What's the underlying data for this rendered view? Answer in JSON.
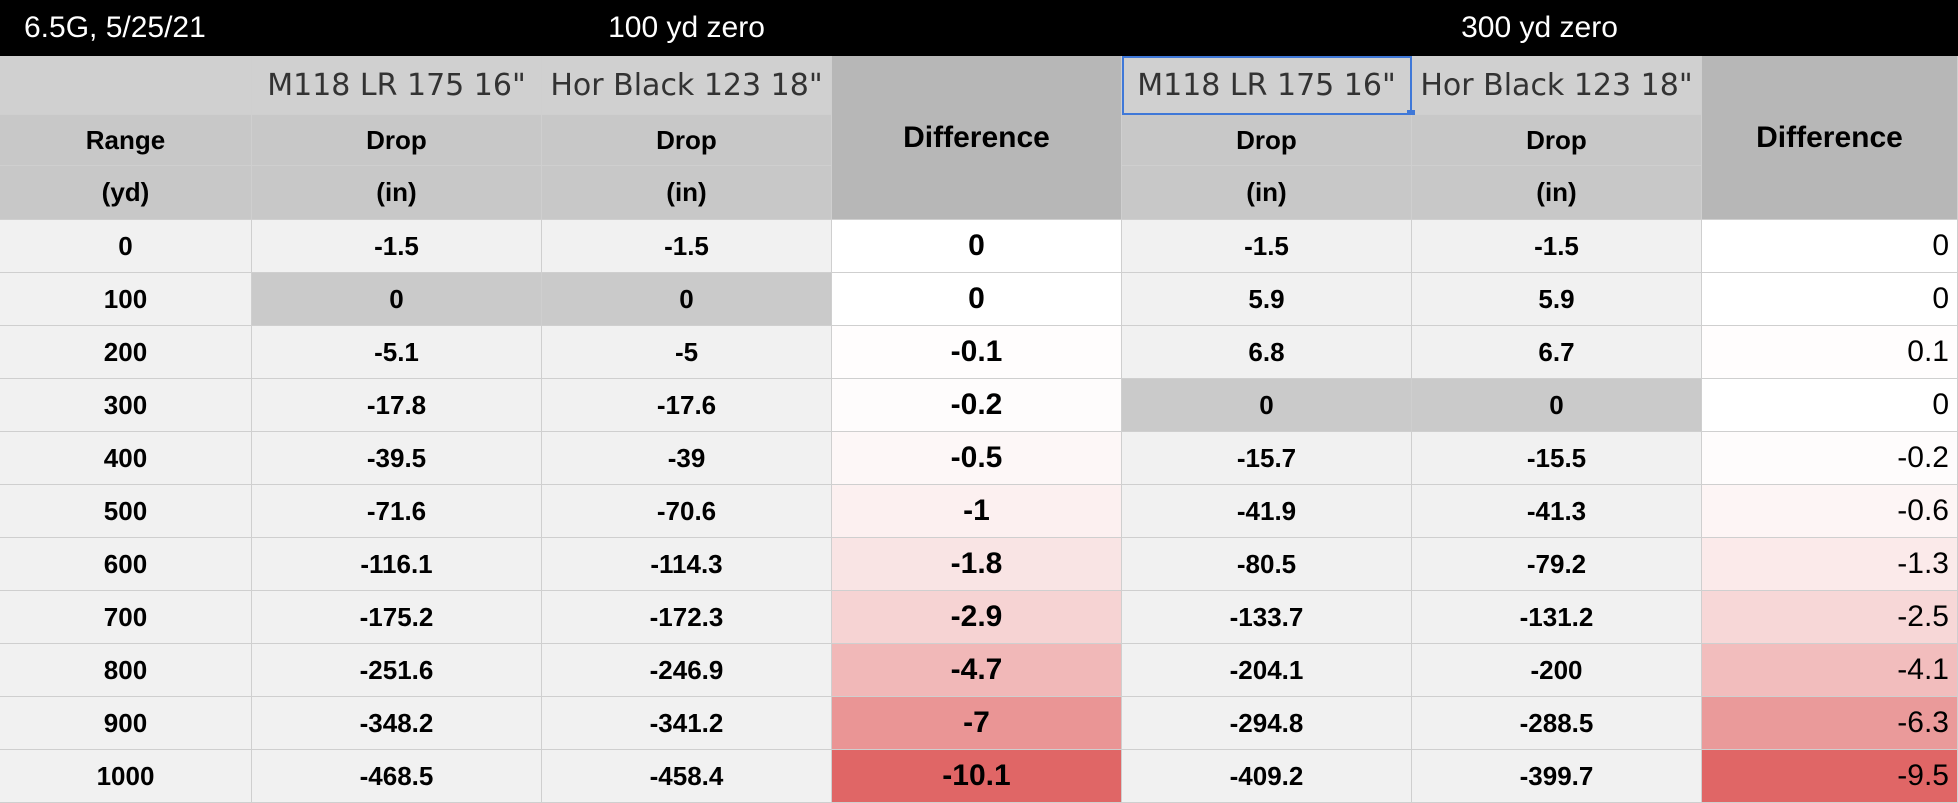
{
  "title_cell": "6.5G, 5/25/21",
  "zero_groups": [
    "100 yd zero",
    "300 yd zero"
  ],
  "loads": [
    "M118 LR 175 16\"",
    "Hor Black 123 18\""
  ],
  "header": {
    "range": "Range",
    "range_unit": "(yd)",
    "drop": "Drop",
    "drop_unit": "(in)",
    "difference": "Difference"
  },
  "rows": [
    {
      "range": "0",
      "a1": "-1.5",
      "b1": "-1.5",
      "d1": "0",
      "a2": "-1.5",
      "b2": "-1.5",
      "d2": "0"
    },
    {
      "range": "100",
      "a1": "0",
      "b1": "0",
      "d1": "0",
      "a2": "5.9",
      "b2": "5.9",
      "d2": "0"
    },
    {
      "range": "200",
      "a1": "-5.1",
      "b1": "-5",
      "d1": "-0.1",
      "a2": "6.8",
      "b2": "6.7",
      "d2": "0.1"
    },
    {
      "range": "300",
      "a1": "-17.8",
      "b1": "-17.6",
      "d1": "-0.2",
      "a2": "0",
      "b2": "0",
      "d2": "0"
    },
    {
      "range": "400",
      "a1": "-39.5",
      "b1": "-39",
      "d1": "-0.5",
      "a2": "-15.7",
      "b2": "-15.5",
      "d2": "-0.2"
    },
    {
      "range": "500",
      "a1": "-71.6",
      "b1": "-70.6",
      "d1": "-1",
      "a2": "-41.9",
      "b2": "-41.3",
      "d2": "-0.6"
    },
    {
      "range": "600",
      "a1": "-116.1",
      "b1": "-114.3",
      "d1": "-1.8",
      "a2": "-80.5",
      "b2": "-79.2",
      "d2": "-1.3"
    },
    {
      "range": "700",
      "a1": "-175.2",
      "b1": "-172.3",
      "d1": "-2.9",
      "a2": "-133.7",
      "b2": "-131.2",
      "d2": "-2.5"
    },
    {
      "range": "800",
      "a1": "-251.6",
      "b1": "-246.9",
      "d1": "-4.7",
      "a2": "-204.1",
      "b2": "-200",
      "d2": "-4.1"
    },
    {
      "range": "900",
      "a1": "-348.2",
      "b1": "-341.2",
      "d1": "-7",
      "a2": "-294.8",
      "b2": "-288.5",
      "d2": "-6.3"
    },
    {
      "range": "1000",
      "a1": "-468.5",
      "b1": "-458.4",
      "d1": "-10.1",
      "a2": "-409.2",
      "b2": "-399.7",
      "d2": "-9.5"
    }
  ],
  "colors": {
    "title_bg": "#000000",
    "header_gray": "#d0d0d0",
    "difference_gray": "#b7b7b7",
    "zero_row_gray": "#cacaca",
    "heat_max": "#e06666",
    "selection": "#3f78d8"
  }
}
